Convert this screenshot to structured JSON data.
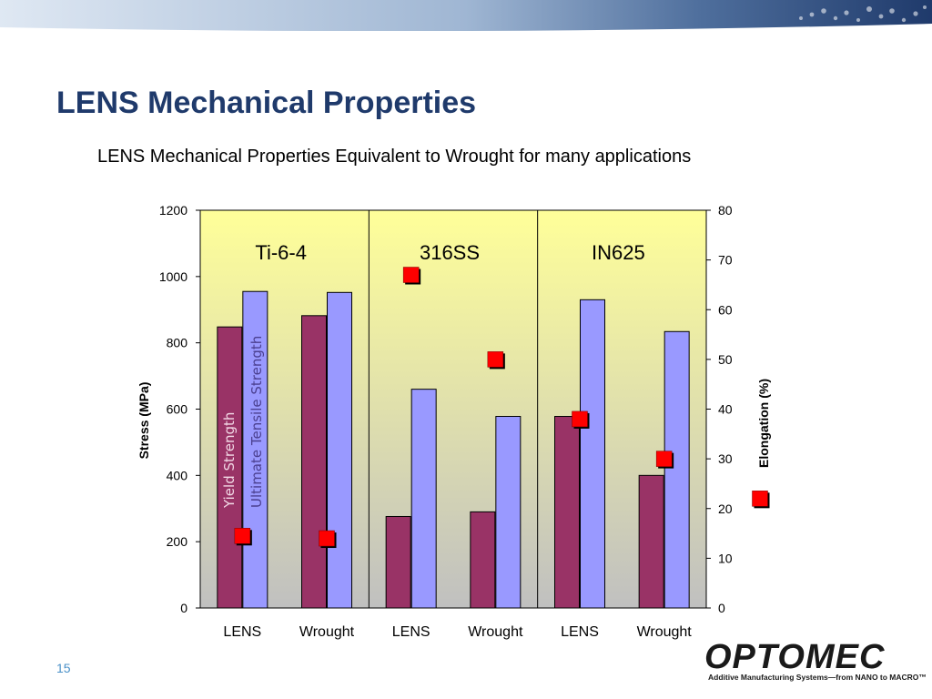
{
  "slide": {
    "title": "LENS Mechanical Properties",
    "subtitle": "LENS Mechanical Properties Equivalent to Wrought for many applications",
    "page_number": "15"
  },
  "logo": {
    "name": "OPTOMEC",
    "tagline": "Additive Manufacturing Systems—from NANO to MACRO™"
  },
  "colors": {
    "yield": "#993366",
    "uts": "#9999ff",
    "elongation": "#ff0000",
    "plot_bg_top": "#ffff99",
    "plot_bg_bottom": "#c0c0c0",
    "title": "#1f3a6b",
    "banner": "#1f3a6b"
  },
  "chart_data": {
    "type": "bar",
    "categories": [
      "LENS",
      "Wrought",
      "LENS",
      "Wrought",
      "LENS",
      "Wrought"
    ],
    "groups": [
      "Ti-6-4",
      "316SS",
      "IN625"
    ],
    "series": [
      {
        "name": "Yield Strength",
        "axis": "left",
        "type": "bar",
        "values": [
          848,
          882,
          276,
          290,
          578,
          400
        ]
      },
      {
        "name": "Ultimate Tensile Strength",
        "axis": "left",
        "type": "bar",
        "values": [
          955,
          952,
          660,
          578,
          930,
          834
        ]
      },
      {
        "axis": "right",
        "type": "scatter",
        "values": [
          14.5,
          14,
          67,
          50,
          38,
          30
        ]
      }
    ],
    "ylabel": "Stress (MPa)",
    "y2label": "Elongation (%)",
    "ylim": [
      0,
      1200
    ],
    "y2lim": [
      0,
      80
    ],
    "yticks": [
      "0",
      "200",
      "400",
      "600",
      "800",
      "1000",
      "1200"
    ],
    "y2ticks": [
      "0",
      "10",
      "20",
      "30",
      "40",
      "50",
      "60",
      "70",
      "80"
    ],
    "legend_marker_y2": 22,
    "grid": false
  }
}
